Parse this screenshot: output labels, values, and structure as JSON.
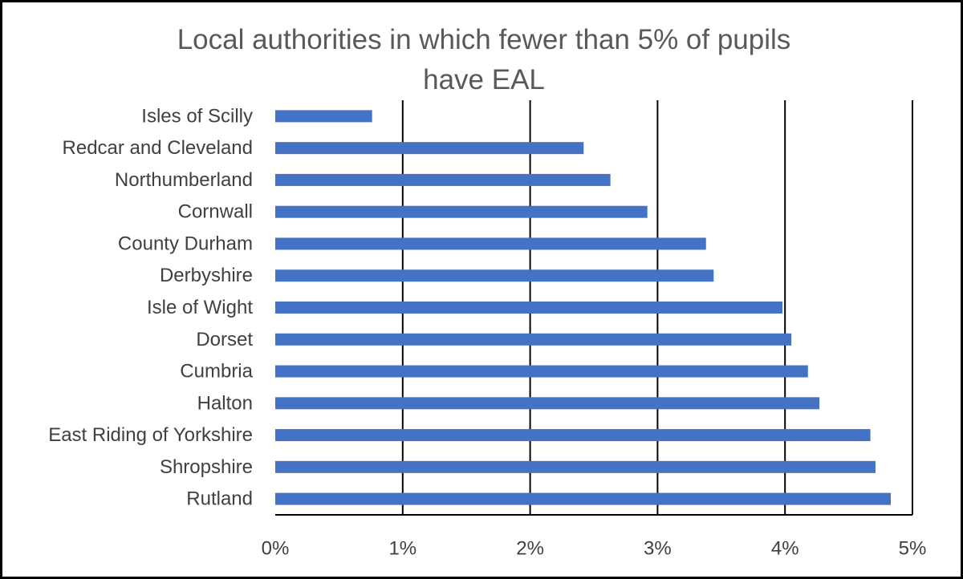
{
  "chart_data": {
    "type": "bar",
    "orientation": "horizontal",
    "title_lines": [
      "Local authorities in which fewer than 5% of pupils",
      "have EAL"
    ],
    "title": "Local authorities in which fewer than 5% of pupils have EAL",
    "categories": [
      "Isles of Scilly",
      "Redcar and Cleveland",
      "Northumberland",
      "Cornwall",
      "County Durham",
      "Derbyshire",
      "Isle of Wight",
      "Dorset",
      "Cumbria",
      "Halton",
      "East Riding of Yorkshire",
      "Shropshire",
      "Rutland"
    ],
    "values": [
      0.76,
      2.42,
      2.63,
      2.92,
      3.38,
      3.44,
      3.98,
      4.05,
      4.18,
      4.27,
      4.67,
      4.71,
      4.83
    ],
    "xlim": [
      0,
      5
    ],
    "xticks": [
      0,
      1,
      2,
      3,
      4,
      5
    ],
    "xtick_labels": [
      "0%",
      "1%",
      "2%",
      "3%",
      "4%",
      "5%"
    ],
    "xlabel": "",
    "ylabel": "",
    "grid": true,
    "bar_color": "#4472C4",
    "grid_color": "#000000"
  }
}
